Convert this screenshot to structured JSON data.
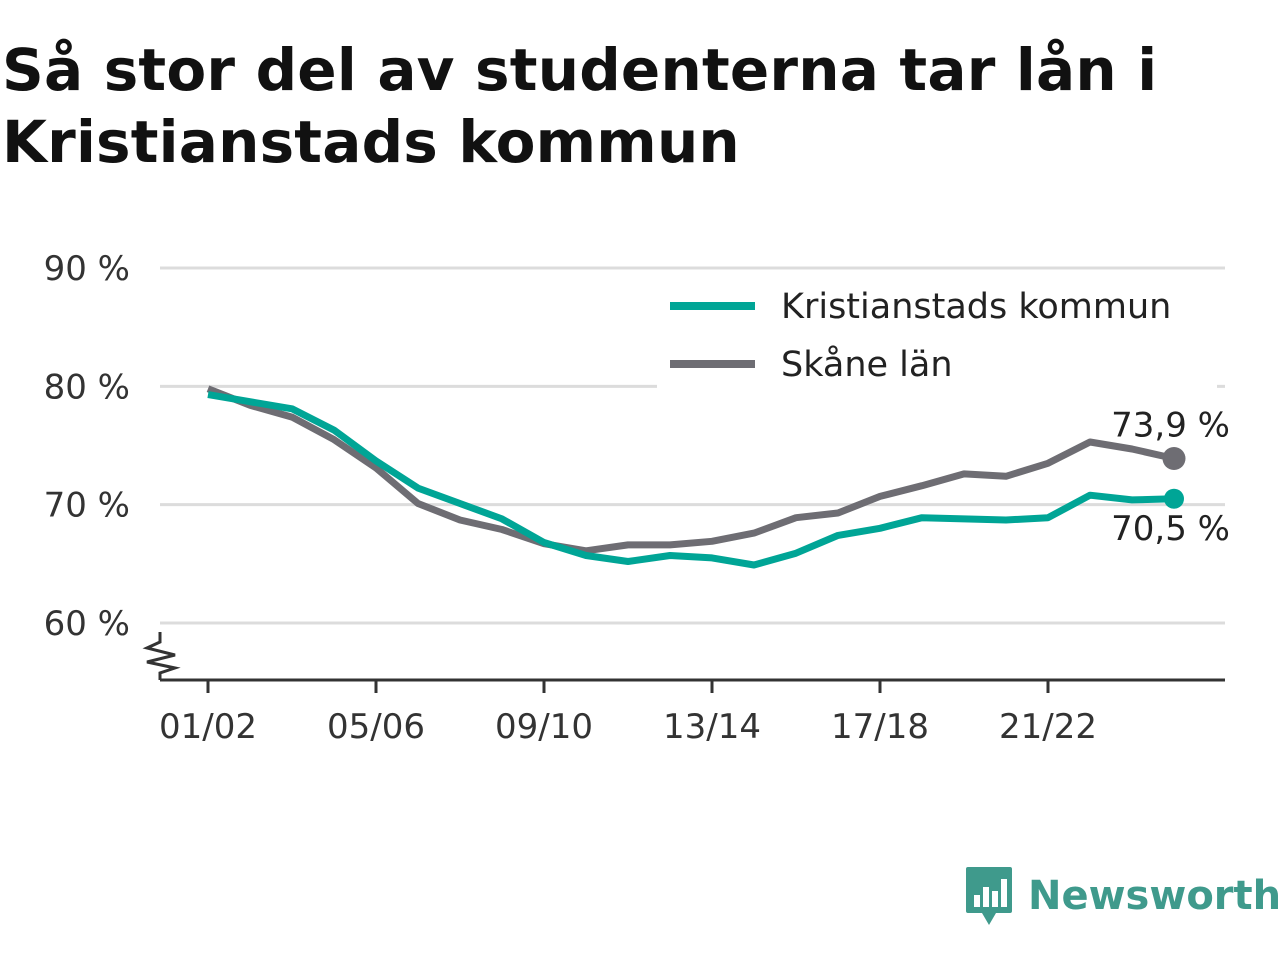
{
  "title": "Så stor del av studenterna tar lån i Kristianstads kommun",
  "colors": {
    "kristianstad": "#00a596",
    "skane": "#6e6d73",
    "grid": "#dcdcdc",
    "brand": "#3f9a8c"
  },
  "brand": {
    "name": "Newsworthy",
    "icon": "newsworthy-logo-icon"
  },
  "chart_data": {
    "type": "line",
    "title": "Så stor del av studenterna tar lån i Kristianstads kommun",
    "xlabel": "",
    "ylabel": "",
    "ylim": [
      55,
      90
    ],
    "y_ticks": [
      60,
      70,
      80,
      90
    ],
    "y_tick_labels": [
      "60 %",
      "70 %",
      "80 %",
      "90 %"
    ],
    "y_axis_break": true,
    "grid": true,
    "legend_position": "top-right",
    "x": [
      "01/02",
      "02/03",
      "03/04",
      "04/05",
      "05/06",
      "06/07",
      "07/08",
      "08/09",
      "09/10",
      "10/11",
      "11/12",
      "12/13",
      "13/14",
      "14/15",
      "15/16",
      "16/17",
      "17/18",
      "18/19",
      "19/20",
      "20/21",
      "21/22",
      "22/23",
      "23/24",
      "24/25"
    ],
    "x_tick_labels": [
      "01/02",
      "05/06",
      "09/10",
      "13/14",
      "17/18",
      "21/22"
    ],
    "series": [
      {
        "name": "Kristianstads kommun",
        "color": "#00a596",
        "values": [
          79.3,
          78.7,
          78.1,
          76.3,
          73.7,
          71.4,
          70.1,
          68.8,
          66.8,
          65.7,
          65.2,
          65.7,
          65.5,
          64.9,
          65.9,
          67.4,
          68.0,
          68.9,
          68.8,
          68.7,
          68.9,
          70.8,
          70.4,
          70.5
        ],
        "end_label": "70,5 %"
      },
      {
        "name": "Skåne län",
        "color": "#6e6d73",
        "values": [
          79.8,
          78.4,
          77.4,
          75.5,
          73.1,
          70.1,
          68.7,
          67.9,
          66.7,
          66.1,
          66.6,
          66.6,
          66.9,
          67.6,
          68.9,
          69.3,
          70.7,
          71.6,
          72.6,
          72.4,
          73.5,
          75.3,
          74.7,
          73.9
        ],
        "end_label": "73,9 %"
      }
    ]
  }
}
